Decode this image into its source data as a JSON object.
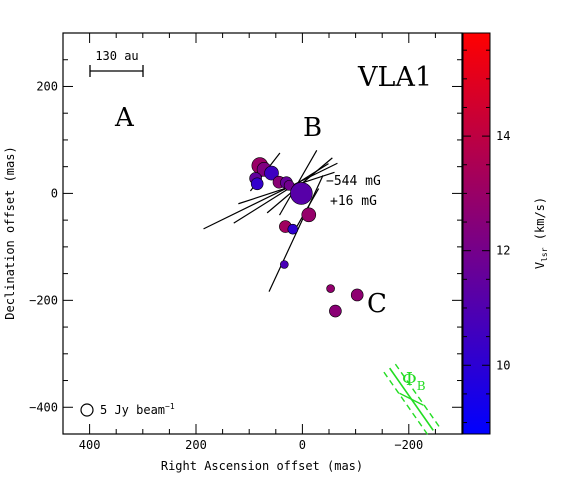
{
  "chart_data": {
    "type": "scatter",
    "xlabel": "Right Ascension offset (mas)",
    "ylabel": "Declination offset (mas)",
    "xlim": [
      450,
      -300
    ],
    "ylim": [
      -450,
      300
    ],
    "x_ticks": [
      400,
      200,
      0,
      -200
    ],
    "y_ticks": [
      200,
      0,
      -200,
      -400
    ],
    "x_tick_labels": [
      "400",
      "200",
      "0",
      "−200"
    ],
    "y_tick_labels": [
      "200",
      "0",
      "−200",
      "−400"
    ],
    "colorbar": {
      "label": "V",
      "label_sub": "lsr",
      "label_rest": " (km/s)",
      "range": [
        8.8,
        15.8
      ],
      "ticks": [
        10,
        12,
        14
      ],
      "colormap": [
        "#0000ff",
        "#ff0000"
      ]
    },
    "points": [
      {
        "x": 80,
        "y": 52,
        "v": 13.0,
        "size": 8
      },
      {
        "x": 72,
        "y": 45,
        "v": 12.3,
        "size": 7
      },
      {
        "x": 88,
        "y": 28,
        "v": 11.5,
        "size": 6
      },
      {
        "x": 85,
        "y": 18,
        "v": 10.2,
        "size": 6
      },
      {
        "x": 58,
        "y": 38,
        "v": 10.5,
        "size": 7
      },
      {
        "x": 44,
        "y": 21,
        "v": 12.6,
        "size": 6
      },
      {
        "x": 30,
        "y": 20,
        "v": 11.6,
        "size": 6
      },
      {
        "x": 25,
        "y": 15,
        "v": 11.9,
        "size": 5
      },
      {
        "x": 2,
        "y": 0,
        "v": 11.2,
        "size": 11
      },
      {
        "x": -12,
        "y": -40,
        "v": 12.9,
        "size": 7
      },
      {
        "x": 32,
        "y": -62,
        "v": 13.2,
        "size": 6
      },
      {
        "x": 18,
        "y": -67,
        "v": 10.1,
        "size": 5
      },
      {
        "x": 34,
        "y": -133,
        "v": 10.8,
        "size": 4
      },
      {
        "x": -53,
        "y": -178,
        "v": 12.8,
        "size": 4
      },
      {
        "x": -62,
        "y": -220,
        "v": 12.6,
        "size": 6
      },
      {
        "x": -103,
        "y": -190,
        "v": 12.7,
        "size": 6
      }
    ],
    "vectors": [
      {
        "x": 60,
        "y": -5,
        "angle": 26,
        "length": 280
      },
      {
        "x": 40,
        "y": 0,
        "angle": 32,
        "length": 210
      },
      {
        "x": 30,
        "y": 10,
        "angle": 18,
        "length": 190
      },
      {
        "x": 5,
        "y": 15,
        "angle": 40,
        "length": 160
      },
      {
        "x": 70,
        "y": 40,
        "angle": 52,
        "length": 90
      },
      {
        "x": 12,
        "y": -75,
        "angle": 65,
        "length": 240
      },
      {
        "x": 8,
        "y": 20,
        "angle": 60,
        "length": 140
      },
      {
        "x": -8,
        "y": -30,
        "angle": 60,
        "length": 90
      }
    ],
    "annotations": {
      "title": "VLA1",
      "region_a": "A",
      "region_b": "B",
      "region_c": "C",
      "field_1": "−544 mG",
      "field_2": "+16 mG",
      "scale_label": "130 au",
      "beam_label": "5 Jy beam",
      "beam_sup": "−1",
      "phi": "Φ",
      "phi_sub": "B"
    },
    "phi_vector": {
      "x": -205,
      "y": -385,
      "angle": 35
    },
    "colors": {
      "phi": "#22dd22",
      "axes": "#000000"
    }
  }
}
